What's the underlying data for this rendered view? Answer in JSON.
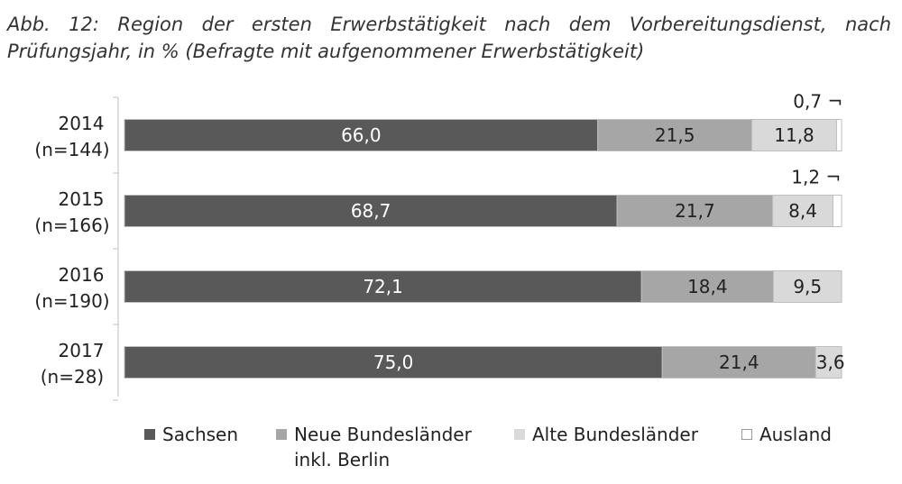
{
  "caption": "Abb. 12: Region der ersten Erwerbstätigkeit nach dem Vorbereitungsdienst, nach Prüfungsjahr, in % (Befragte mit aufgenommener Erwerbstätigkeit)",
  "chart_data": {
    "type": "bar",
    "orientation": "horizontal",
    "stacked": true,
    "xlim": [
      0,
      100
    ],
    "unit": "%",
    "categories": [
      {
        "year": "2014",
        "n": "(n=144)"
      },
      {
        "year": "2015",
        "n": "(n=166)"
      },
      {
        "year": "2016",
        "n": "(n=190)"
      },
      {
        "year": "2017",
        "n": "(n=28)"
      }
    ],
    "series": [
      {
        "name": "Sachsen",
        "color": "#595959",
        "label_color": "#ffffff",
        "values": [
          66.0,
          68.7,
          72.1,
          75.0
        ],
        "labels": [
          "66,0",
          "68,7",
          "72,1",
          "75,0"
        ]
      },
      {
        "name": "Neue Bundesländer\ninkl. Berlin",
        "color": "#a6a6a6",
        "label_color": "#222222",
        "values": [
          21.5,
          21.7,
          18.4,
          21.4
        ],
        "labels": [
          "21,5",
          "21,7",
          "18,4",
          "21,4"
        ]
      },
      {
        "name": "Alte Bundesländer",
        "color": "#d9d9d9",
        "label_color": "#222222",
        "values": [
          11.8,
          8.4,
          9.5,
          3.6
        ],
        "labels": [
          "11,8",
          "8,4",
          "9,5",
          "3,6"
        ]
      },
      {
        "name": "Ausland",
        "color": "#ffffff",
        "label_color": "#222222",
        "values": [
          0.7,
          1.2,
          0,
          0
        ],
        "labels": [
          "0,7 ¬",
          "1,2 ¬",
          "",
          ""
        ]
      }
    ]
  }
}
